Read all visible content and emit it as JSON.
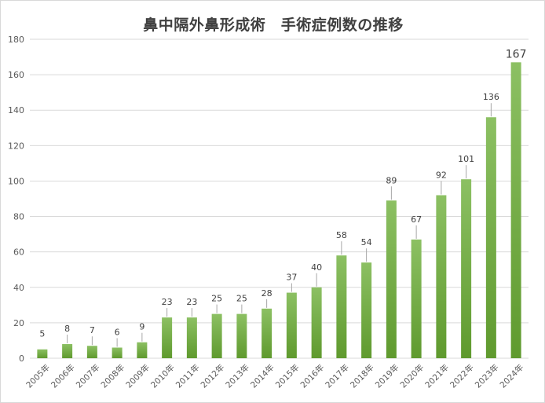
{
  "chart_data": {
    "type": "bar",
    "title": "鼻中隔外鼻形成術　手術症例数の推移",
    "xlabel": "",
    "ylabel": "",
    "categories": [
      "2005年",
      "2006年",
      "2007年",
      "2008年",
      "2009年",
      "2010年",
      "2011年",
      "2012年",
      "2013年",
      "2014年",
      "2015年",
      "2016年",
      "2017年",
      "2018年",
      "2019年",
      "2020年",
      "2021年",
      "2022年",
      "2023年",
      "2024年"
    ],
    "values": [
      5,
      8,
      7,
      6,
      9,
      23,
      23,
      25,
      25,
      28,
      37,
      40,
      58,
      54,
      89,
      67,
      92,
      101,
      136,
      167
    ],
    "ylim": [
      0,
      180
    ],
    "yticks": [
      0,
      20,
      40,
      60,
      80,
      100,
      120,
      140,
      160,
      180
    ],
    "grid": true,
    "legend": "none",
    "colors": {
      "bar_top": "#8cc063",
      "bar_bottom": "#5f9a2e",
      "grid": "#d9d9d9",
      "leader": "#a6a6a6"
    }
  }
}
